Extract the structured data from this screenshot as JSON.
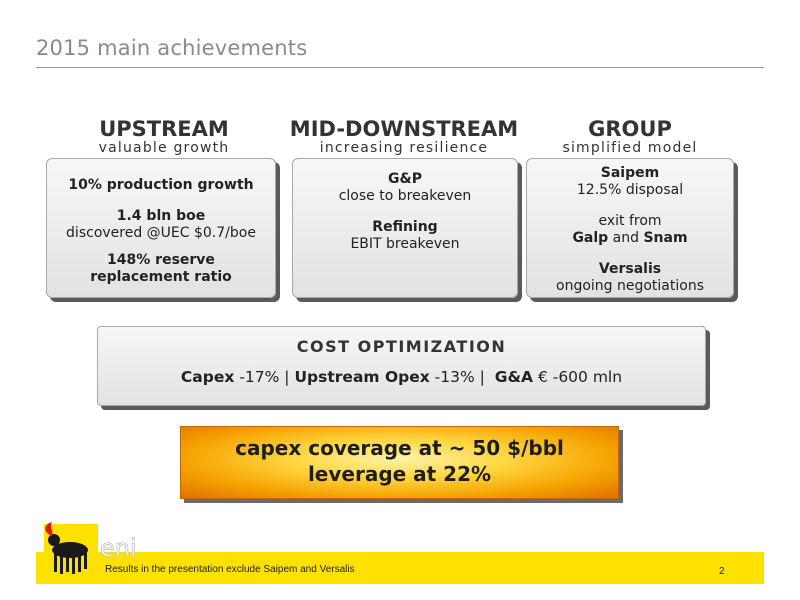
{
  "slide": {
    "title": "2015 main achievements",
    "page_number": "2"
  },
  "columns": [
    {
      "heading": "UPSTREAM",
      "subheading": "valuable growth",
      "items": [
        {
          "bold": "10% production growth",
          "text": ""
        },
        {
          "bold": "1.4 bln boe",
          "text": "discovered @UEC $0.7/boe"
        },
        {
          "bold": "148% reserve replacement ratio",
          "text": ""
        }
      ]
    },
    {
      "heading": "MID-DOWNSTREAM",
      "subheading": "increasing resilience",
      "items": [
        {
          "bold": "G&P",
          "text": "close to breakeven"
        },
        {
          "bold": "Refining",
          "text": "EBIT breakeven"
        }
      ]
    },
    {
      "heading": "GROUP",
      "subheading": "simplified model",
      "items": [
        {
          "bold": "Saipem",
          "text": "12.5% disposal"
        },
        {
          "pre": "exit from",
          "bold1": "Galp",
          "mid": "and",
          "bold2": "Snam"
        },
        {
          "bold": "Versalis",
          "text": "ongoing negotiations"
        }
      ]
    }
  ],
  "cost": {
    "title": "COST OPTIMIZATION",
    "capex_label": "Capex",
    "capex_value": "-17%",
    "sep1": "|",
    "opex_label": "Upstream Opex",
    "opex_value": "-13%",
    "sep2": "|",
    "ga_label": "G&A",
    "ga_value": "€ -600 mln"
  },
  "highlight": {
    "line1": "capex coverage at ~ 50 $/bbl",
    "line2": "leverage at 22%"
  },
  "footer": {
    "note": "Results in the presentation exclude Saipem and Versalis",
    "logo_text": "eni"
  },
  "colors": {
    "footer_band": "#ffe100",
    "highlight_orange": "#f5a200"
  }
}
